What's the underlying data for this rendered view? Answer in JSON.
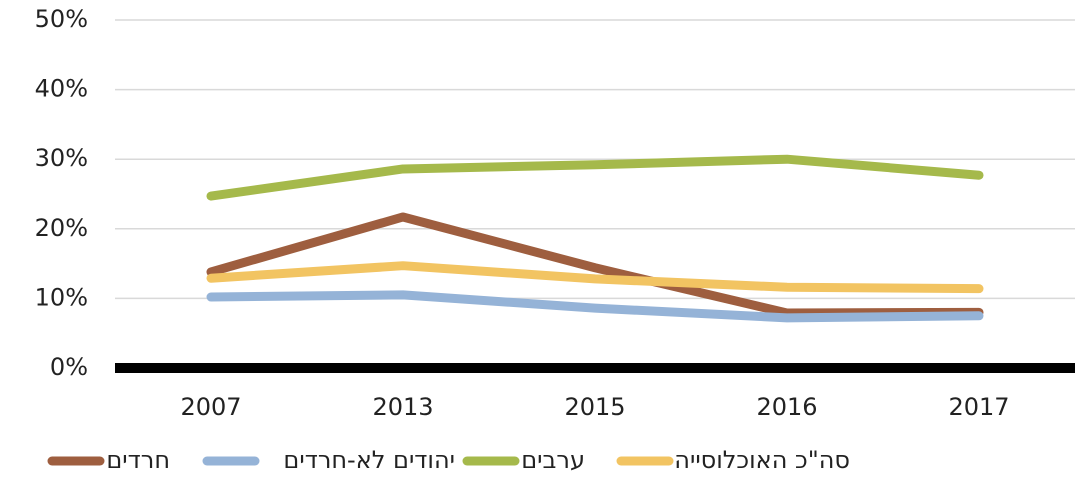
{
  "chart_data": {
    "type": "line",
    "categories": [
      "2007",
      "2013",
      "2015",
      "2016",
      "2017"
    ],
    "series": [
      {
        "name": "חרדים",
        "color": "#9e5e3f",
        "values": [
          13.8,
          21.7,
          14.4,
          7.9,
          8.0
        ]
      },
      {
        "name": "יהודים לא-חרדים",
        "color": "#95b3d7",
        "values": [
          10.2,
          10.5,
          8.6,
          7.2,
          7.5
        ]
      },
      {
        "name": "ערבים",
        "color": "#a5b94b",
        "values": [
          24.7,
          28.6,
          29.2,
          30.0,
          27.7
        ]
      },
      {
        "name": "סה\"כ האוכלוסייה",
        "color": "#f2c462",
        "values": [
          12.9,
          14.7,
          12.8,
          11.6,
          11.4
        ]
      }
    ],
    "ylim": [
      0,
      50
    ],
    "yticks": [
      {
        "value": 0,
        "label": "0%"
      },
      {
        "value": 10,
        "label": "10%"
      },
      {
        "value": 20,
        "label": "20%"
      },
      {
        "value": 30,
        "label": "30%"
      },
      {
        "value": 40,
        "label": "40%"
      },
      {
        "value": 50,
        "label": "50%"
      }
    ],
    "grid": true,
    "legend": "bottom"
  }
}
